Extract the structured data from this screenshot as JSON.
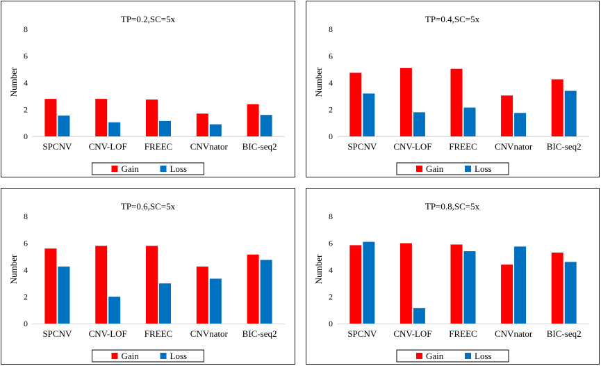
{
  "legend": {
    "gain": "Gain",
    "loss": "Loss"
  },
  "colors": {
    "gain": "#ff0000",
    "loss": "#0070c0",
    "axis": "#d9d9d9"
  },
  "chart_data": [
    {
      "type": "bar",
      "title": "TP=0.2,SC=5x",
      "ylabel": "Number",
      "xlabel": "",
      "ylim": [
        0,
        8
      ],
      "yticks": [
        0,
        2,
        4,
        6,
        8
      ],
      "categories": [
        "SPCNV",
        "CNV-LOF",
        "FREEC",
        "CNVnator",
        "BIC-seq2"
      ],
      "series": [
        {
          "name": "Gain",
          "values": [
            2.8,
            2.8,
            2.75,
            1.7,
            2.4
          ]
        },
        {
          "name": "Loss",
          "values": [
            1.55,
            1.05,
            1.15,
            0.9,
            1.6
          ]
        }
      ],
      "legend_position": "bottom"
    },
    {
      "type": "bar",
      "title": "TP=0.4,SC=5x",
      "ylabel": "Number",
      "xlabel": "",
      "ylim": [
        0,
        8
      ],
      "yticks": [
        0,
        2,
        4,
        6,
        8
      ],
      "categories": [
        "SPCNV",
        "CNV-LOF",
        "FREEC",
        "CNVnator",
        "BIC-seq2"
      ],
      "series": [
        {
          "name": "Gain",
          "values": [
            4.75,
            5.1,
            5.05,
            3.05,
            4.25
          ]
        },
        {
          "name": "Loss",
          "values": [
            3.2,
            1.8,
            2.15,
            1.75,
            3.4
          ]
        }
      ],
      "legend_position": "bottom"
    },
    {
      "type": "bar",
      "title": "TP=0.6,SC=5x",
      "ylabel": "Number",
      "xlabel": "",
      "ylim": [
        0,
        8
      ],
      "yticks": [
        0,
        2,
        4,
        6,
        8
      ],
      "categories": [
        "SPCNV",
        "CNV-LOF",
        "FREEC",
        "CNVnator",
        "BIC-seq2"
      ],
      "series": [
        {
          "name": "Gain",
          "values": [
            5.6,
            5.8,
            5.8,
            4.25,
            5.15
          ]
        },
        {
          "name": "Loss",
          "values": [
            4.25,
            2.0,
            3.0,
            3.35,
            4.75
          ]
        }
      ],
      "legend_position": "bottom"
    },
    {
      "type": "bar",
      "title": "TP=0.8,SC=5x",
      "ylabel": "Number",
      "xlabel": "",
      "ylim": [
        0,
        8
      ],
      "yticks": [
        0,
        2,
        4,
        6,
        8
      ],
      "categories": [
        "SPCNV",
        "CNV-LOF",
        "FREEC",
        "CNVnator",
        "BIC-seq2"
      ],
      "series": [
        {
          "name": "Gain",
          "values": [
            5.85,
            6.0,
            5.9,
            4.4,
            5.3
          ]
        },
        {
          "name": "Loss",
          "values": [
            6.1,
            1.15,
            5.4,
            5.75,
            4.6
          ]
        }
      ],
      "legend_position": "bottom"
    }
  ]
}
